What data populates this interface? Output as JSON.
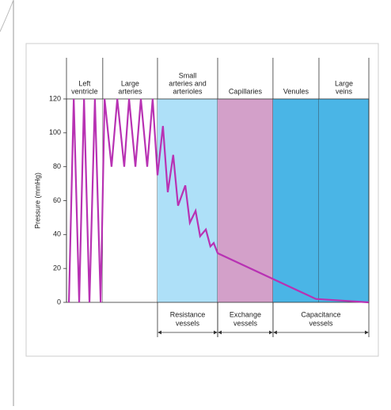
{
  "chart_data": {
    "type": "line",
    "y_label": "Pressure (mmHg)",
    "xlim": [
      0,
      100
    ],
    "ylim": [
      0,
      120
    ],
    "yticks": [
      0,
      20,
      40,
      60,
      80,
      100,
      120
    ],
    "regions": [
      {
        "label": [
          "Left",
          "ventricle"
        ],
        "start": 0,
        "end": 12.0,
        "color": "#ffffff"
      },
      {
        "label": [
          "Large",
          "arteries"
        ],
        "start": 12.0,
        "end": 30.1,
        "color": "#ffffff"
      },
      {
        "label": [
          "Small",
          "arteries and",
          "arterioles"
        ],
        "start": 30.1,
        "end": 50.0,
        "color": "#aee0f8"
      },
      {
        "label": [
          "Capillaries"
        ],
        "start": 50.0,
        "end": 68.3,
        "color": "#d3a0c9"
      },
      {
        "label": [
          "Venules"
        ],
        "start": 68.3,
        "end": 83.5,
        "color": "#4ab5e6"
      },
      {
        "label": [
          "Large",
          "veins"
        ],
        "start": 83.5,
        "end": 100,
        "color": "#4ab5e6"
      }
    ],
    "groups": [
      {
        "label": [
          "Resistance",
          "vessels"
        ],
        "start": 30.1,
        "end": 50.0
      },
      {
        "label": [
          "Exchange",
          "vessels"
        ],
        "start": 50.0,
        "end": 68.3
      },
      {
        "label": [
          "Capacitance",
          "vessels"
        ],
        "start": 68.3,
        "end": 100
      }
    ],
    "series": [
      {
        "color": "#b832b3",
        "x": [
          0.8,
          2.4,
          4.2,
          5.8,
          7.6,
          9.4,
          11.3,
          12.6,
          14.9,
          16.8,
          19.1,
          20.7,
          22.8,
          24.6,
          26.7,
          28.5,
          30.1,
          31.9,
          33.5,
          35.3,
          36.9,
          39.3,
          40.8,
          42.7,
          44.2,
          46.1,
          47.6,
          48.7,
          50.0,
          82.5,
          100
        ],
        "values": [
          0,
          120,
          0,
          120,
          0,
          120,
          0,
          120,
          80,
          120,
          80,
          120,
          80,
          120,
          80,
          120,
          75,
          104,
          65,
          87,
          57,
          69,
          47,
          54,
          39,
          43,
          33,
          35,
          29,
          2,
          0
        ]
      }
    ]
  }
}
